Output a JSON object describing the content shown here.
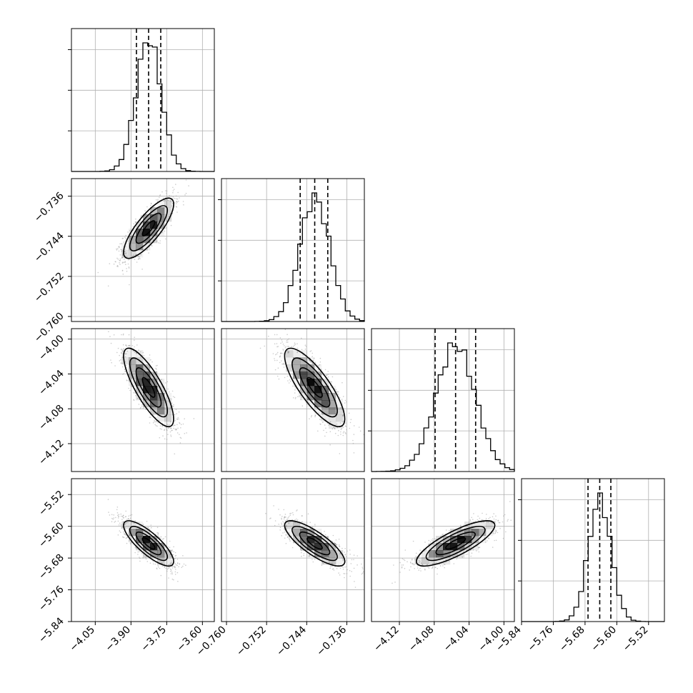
{
  "chart_data": {
    "type": "corner",
    "parameters": [
      {
        "ticks": [
          -4.05,
          -3.9,
          -3.75,
          -3.6
        ],
        "tick_labels": [
          "−4.05",
          "−3.90",
          "−3.75",
          "−3.60"
        ],
        "range": [
          -4.15,
          -3.55
        ],
        "mean": -3.826,
        "std": 0.0525,
        "quantiles": [
          -3.877,
          -3.826,
          -3.775
        ]
      },
      {
        "ticks": [
          -0.76,
          -0.752,
          -0.744,
          -0.736
        ],
        "tick_labels": [
          "−0.760",
          "−0.752",
          "−0.744",
          "−0.736"
        ],
        "range": [
          -0.761,
          -0.7325
        ],
        "mean": -0.7424,
        "std": 0.003,
        "quantiles": [
          -0.7453,
          -0.7424,
          -0.7398
        ]
      },
      {
        "ticks": [
          -4.12,
          -4.08,
          -4.04,
          -4.0
        ],
        "tick_labels": [
          "−4.12",
          "−4.08",
          "−4.04",
          "−4.00"
        ],
        "range": [
          -4.152,
          -3.988
        ],
        "mean": -4.0555,
        "std": 0.0225,
        "quantiles": [
          -4.079,
          -4.0555,
          -4.0325
        ]
      },
      {
        "ticks": [
          -5.84,
          -5.76,
          -5.68,
          -5.6,
          -5.52
        ],
        "tick_labels": [
          "−5.84",
          "−5.76",
          "−5.68",
          "−5.60",
          "−5.52"
        ],
        "range": [
          -5.84,
          -5.48
        ],
        "mean": -5.643,
        "std": 0.0285,
        "quantiles": [
          -5.6725,
          -5.643,
          -5.615
        ]
      }
    ],
    "correlations": [
      {
        "pair": [
          0,
          1
        ],
        "rho": 0.8
      },
      {
        "pair": [
          0,
          2
        ],
        "rho": -0.8
      },
      {
        "pair": [
          1,
          2
        ],
        "rho": -0.8
      },
      {
        "pair": [
          0,
          3
        ],
        "rho": -0.8
      },
      {
        "pair": [
          1,
          3
        ],
        "rho": -0.8
      },
      {
        "pair": [
          2,
          3
        ],
        "rho": 0.8
      }
    ],
    "contour_levels_sigma": [
      0.5,
      1.0,
      1.5,
      2.0
    ],
    "grid": true,
    "colors": {
      "contour": "#000000",
      "points": "#9a9a9a",
      "density": "#000000"
    }
  }
}
